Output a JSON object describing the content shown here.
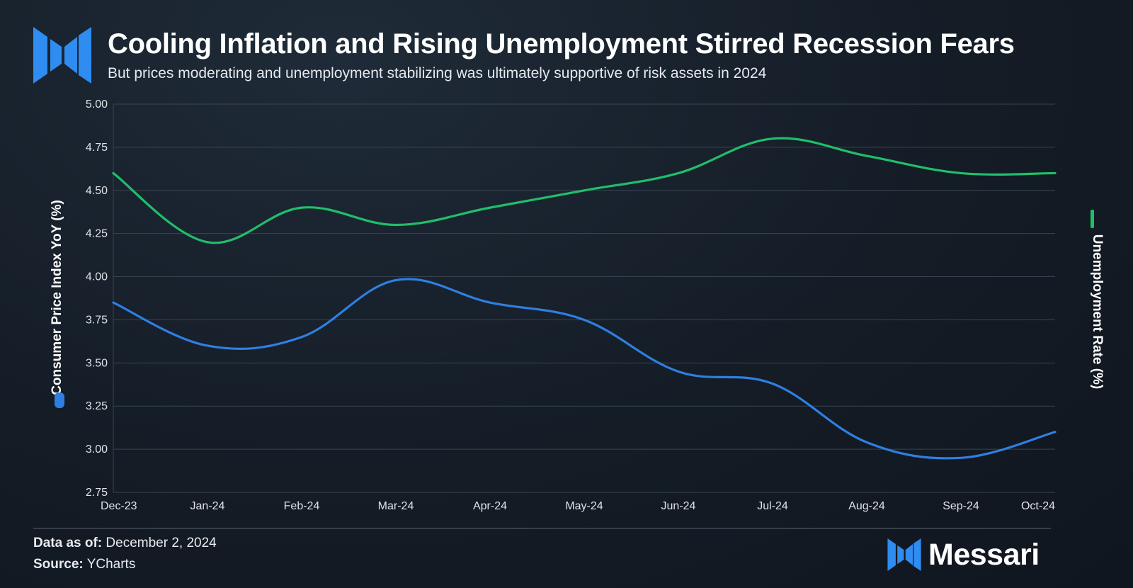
{
  "header": {
    "title": "Cooling Inflation and Rising Unemployment Stirred Recession Fears",
    "subtitle": "But prices moderating and unemployment stabilizing was ultimately supportive of risk assets in 2024"
  },
  "footer": {
    "data_as_of_label": "Data as of:",
    "data_as_of_value": "December 2, 2024",
    "source_label": "Source:",
    "source_value": "YCharts",
    "brand": "Messari"
  },
  "colors": {
    "cpi": "#2f7fe0",
    "unemployment": "#1fbf6a",
    "grid": "#3a4450",
    "brand_blue": "#2f8cf0"
  },
  "chart_data": {
    "type": "line",
    "x": [
      "Dec-23",
      "Jan-24",
      "Feb-24",
      "Mar-24",
      "Apr-24",
      "May-24",
      "Jun-24",
      "Jul-24",
      "Aug-24",
      "Sep-24",
      "Oct-24"
    ],
    "series": [
      {
        "name": "Consumer Price Index YoY (%)",
        "axis": "left",
        "color": "#2f7fe0",
        "values": [
          3.85,
          3.6,
          3.65,
          3.98,
          3.85,
          3.75,
          3.45,
          3.38,
          3.04,
          2.95,
          3.1
        ]
      },
      {
        "name": "Unemployment Rate (%)",
        "axis": "right",
        "color": "#1fbf6a",
        "values": [
          4.6,
          4.2,
          4.4,
          4.3,
          4.4,
          4.5,
          4.6,
          4.8,
          4.7,
          4.6,
          4.6
        ]
      }
    ],
    "ylabel_left": "Consumer Price Index YoY (%)",
    "ylabel_right": "Unemployment Rate (%)",
    "ylim": [
      2.75,
      5.0
    ],
    "yticks": [
      "5.00",
      "4.75",
      "4.50",
      "4.25",
      "4.00",
      "3.75",
      "3.50",
      "3.25",
      "3.00",
      "2.75"
    ],
    "grid": true
  }
}
